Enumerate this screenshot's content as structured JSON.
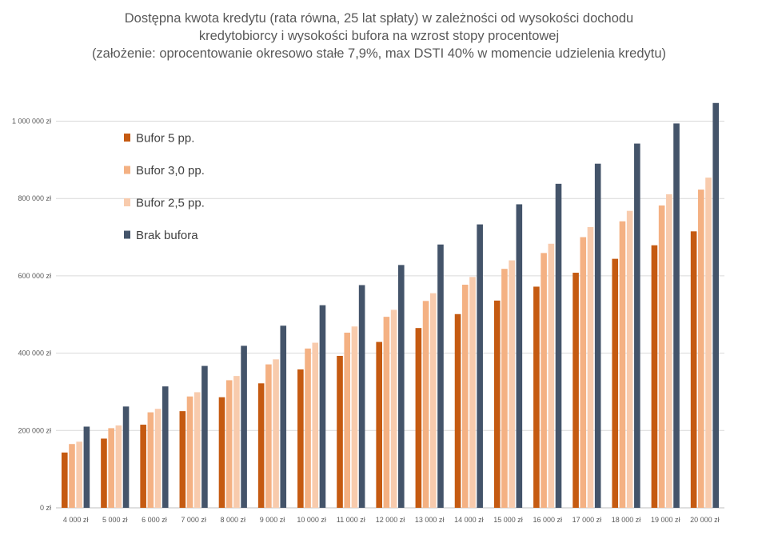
{
  "chart_data": {
    "type": "bar",
    "title_lines": [
      "Dostępna kwota kredytu (rata równa, 25 lat spłaty) w zależności od wysokości dochodu",
      "kredytobiorcy i wysokości bufora na wzrost stopy procentowej",
      "(założenie: oprocentowanie okresowo stałe 7,9%, max DSTI 40% w momencie udzielenia kredytu)"
    ],
    "xlabel": "",
    "ylabel": "",
    "ylim": [
      0,
      1000000
    ],
    "yticks": [
      0,
      200000,
      400000,
      600000,
      800000,
      1000000
    ],
    "ytick_labels": [
      "0 zł",
      "200 000 zł",
      "400 000 zł",
      "600 000 zł",
      "800 000 zł",
      "1 000 000 zł"
    ],
    "categories": [
      "4 000 zł",
      "5 000 zł",
      "6 000 zł",
      "7 000 zł",
      "8 000 zł",
      "9 000 zł",
      "10 000 zł",
      "11 000 zł",
      "12 000 zł",
      "13 000 zł",
      "14 000 zł",
      "15 000 zł",
      "16 000 zł",
      "17 000 zł",
      "18 000 zł",
      "19 000 zł",
      "20 000 zł"
    ],
    "grid": "horizontal",
    "legend_position": "top-left",
    "series": [
      {
        "name": "Bufor 5 pp.",
        "color": "#c55a11",
        "values": [
          143000,
          179000,
          215000,
          250000,
          286000,
          322000,
          358000,
          393000,
          429000,
          465000,
          501000,
          536000,
          572000,
          608000,
          644000,
          679000,
          715000
        ]
      },
      {
        "name": "Bufor 3,0 pp.",
        "color": "#f4b183",
        "values": [
          165000,
          206000,
          247000,
          288000,
          330000,
          371000,
          412000,
          453000,
          494000,
          535000,
          577000,
          618000,
          659000,
          700000,
          741000,
          782000,
          823000
        ]
      },
      {
        "name": "Bufor 2,5 pp.",
        "color": "#f8cbad",
        "values": [
          171000,
          213000,
          256000,
          299000,
          341000,
          384000,
          427000,
          469000,
          512000,
          555000,
          597000,
          640000,
          683000,
          726000,
          768000,
          811000,
          854000
        ]
      },
      {
        "name": "Brak bufora",
        "color": "#44546a",
        "values": [
          210000,
          262000,
          314000,
          367000,
          419000,
          471000,
          524000,
          576000,
          628000,
          681000,
          733000,
          785000,
          838000,
          890000,
          942000,
          994000,
          1047000
        ]
      }
    ]
  }
}
